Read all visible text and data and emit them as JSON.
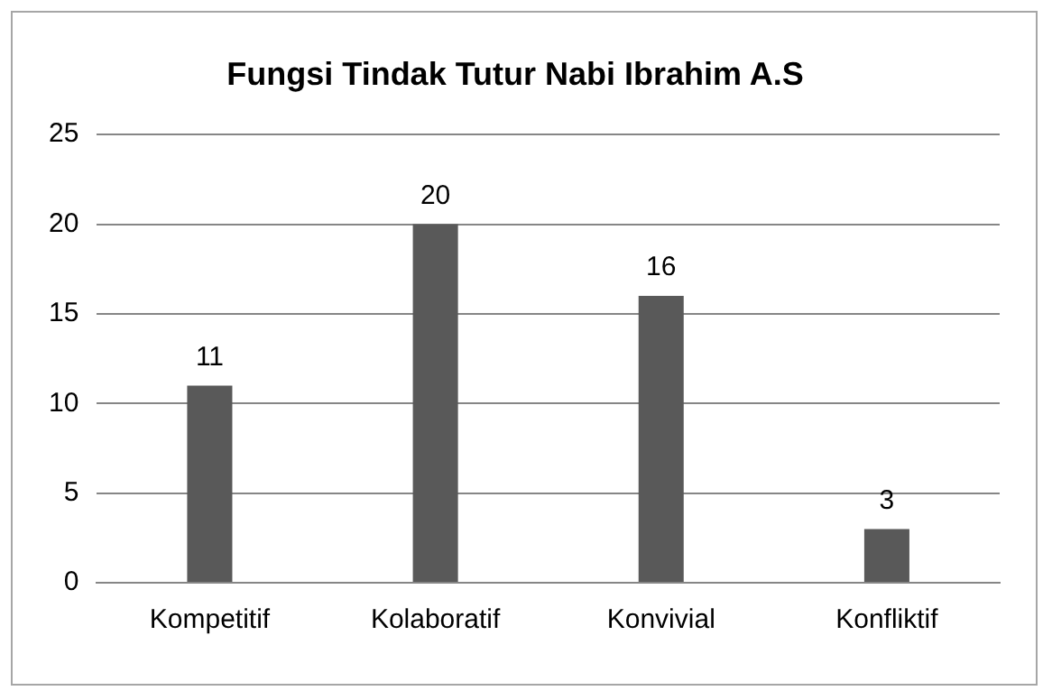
{
  "chart_data": {
    "type": "bar",
    "title": "Fungsi Tindak Tutur Nabi Ibrahim A.S",
    "categories": [
      "Kompetitif",
      "Kolaboratif",
      "Konvivial",
      "Konfliktif"
    ],
    "values": [
      11,
      20,
      16,
      3
    ],
    "color": "#595959",
    "ylim": [
      0,
      25
    ],
    "yticks": [
      0,
      5,
      10,
      15,
      20,
      25
    ],
    "grid": "y",
    "data_labels": true,
    "legend": false
  }
}
